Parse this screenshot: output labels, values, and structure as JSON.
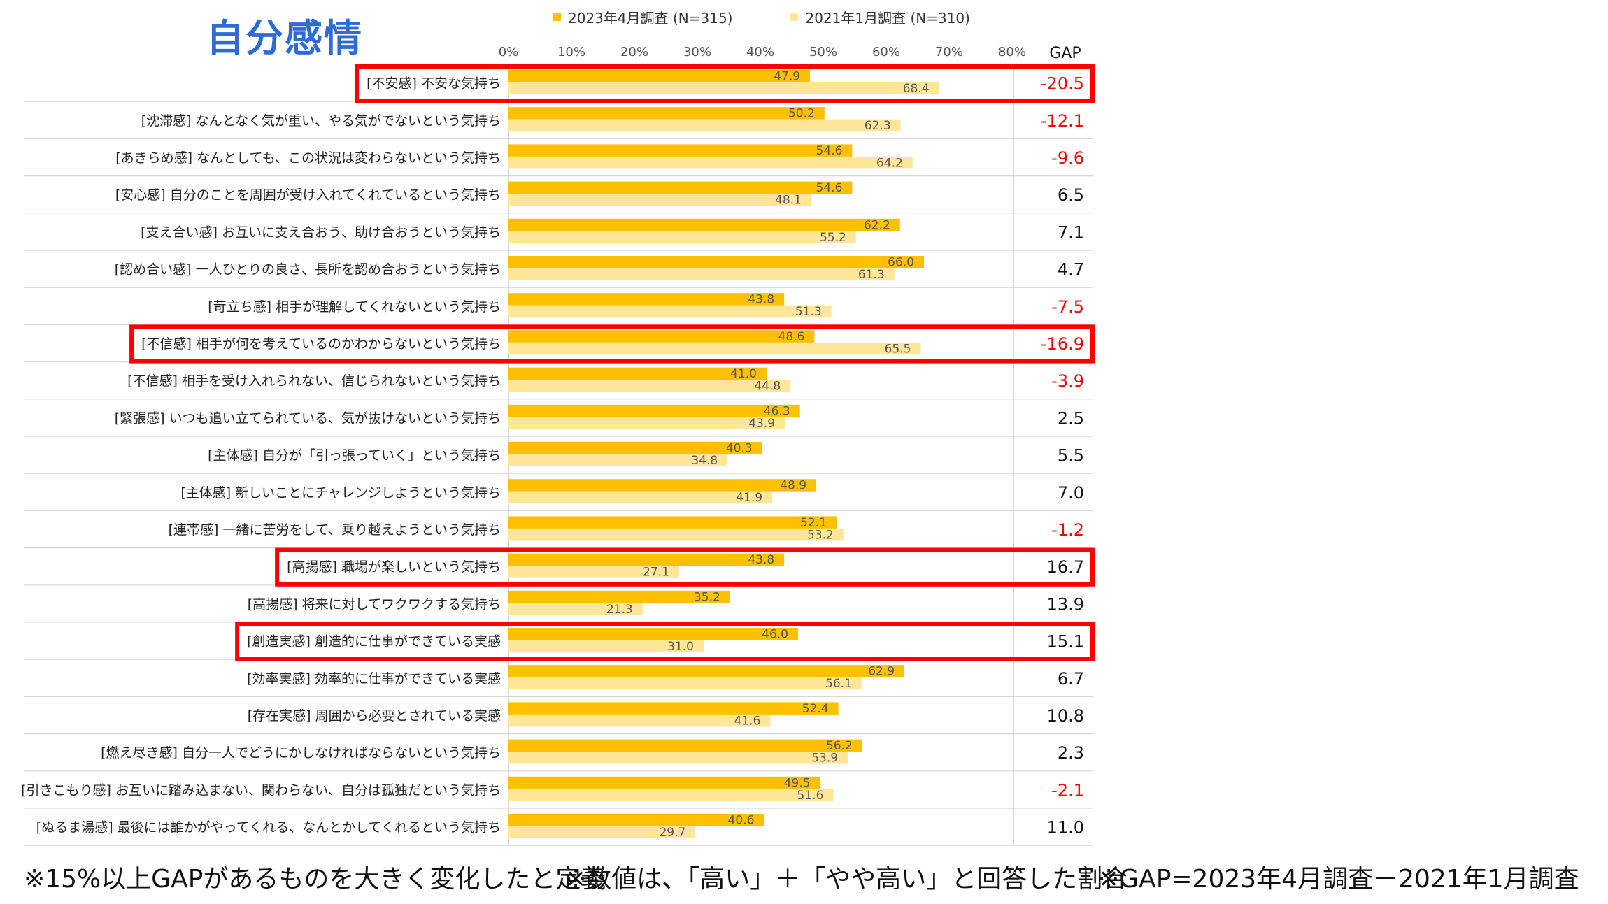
{
  "title": "自分感情",
  "chart_data": {
    "type": "bar",
    "orientation": "horizontal",
    "title": "自分感情",
    "xlim": [
      0,
      80
    ],
    "x_ticks": [
      "0%",
      "10%",
      "20%",
      "30%",
      "40%",
      "50%",
      "60%",
      "70%",
      "80%"
    ],
    "gap_header": "GAP",
    "series": [
      {
        "name": "2023年4月調査 (N=315)",
        "color": "#ffc000"
      },
      {
        "name": "2021年1月調査 (N=310)",
        "color": "#ffe699"
      }
    ],
    "gap_colors": {
      "negative": "#ff0000",
      "positive": "#111111"
    },
    "highlight_color": "#ff0000",
    "rows": [
      {
        "label": "[不安感] 不安な気持ち",
        "v2023": 47.9,
        "v2021": 68.4,
        "gap": "-20.5",
        "highlight": true
      },
      {
        "label": "[沈滞感] なんとなく気が重い、やる気がでないという気持ち",
        "v2023": 50.2,
        "v2021": 62.3,
        "gap": "-12.1",
        "highlight": false
      },
      {
        "label": "[あきらめ感] なんとしても、この状況は変わらないという気持ち",
        "v2023": 54.6,
        "v2021": 64.2,
        "gap": "-9.6",
        "highlight": false
      },
      {
        "label": "[安心感] 自分のことを周囲が受け入れてくれているという気持ち",
        "v2023": 54.6,
        "v2021": 48.1,
        "gap": "6.5",
        "highlight": false
      },
      {
        "label": "[支え合い感] お互いに支え合おう、助け合おうという気持ち",
        "v2023": 62.2,
        "v2021": 55.2,
        "gap": "7.1",
        "highlight": false
      },
      {
        "label": "[認め合い感] 一人ひとりの良さ、長所を認め合おうという気持ち",
        "v2023": 66.0,
        "v2021": 61.3,
        "gap": "4.7",
        "highlight": false
      },
      {
        "label": "[苛立ち感] 相手が理解してくれないという気持ち",
        "v2023": 43.8,
        "v2021": 51.3,
        "gap": "-7.5",
        "highlight": false
      },
      {
        "label": "[不信感] 相手が何を考えているのかわからないという気持ち",
        "v2023": 48.6,
        "v2021": 65.5,
        "gap": "-16.9",
        "highlight": true
      },
      {
        "label": "[不信感] 相手を受け入れられない、信じられないという気持ち",
        "v2023": 41.0,
        "v2021": 44.8,
        "gap": "-3.9",
        "highlight": false
      },
      {
        "label": "[緊張感] いつも追い立てられている、気が抜けないという気持ち",
        "v2023": 46.3,
        "v2021": 43.9,
        "gap": "2.5",
        "highlight": false
      },
      {
        "label": "[主体感] 自分が「引っ張っていく」という気持ち",
        "v2023": 40.3,
        "v2021": 34.8,
        "gap": "5.5",
        "highlight": false
      },
      {
        "label": "[主体感] 新しいことにチャレンジしようという気持ち",
        "v2023": 48.9,
        "v2021": 41.9,
        "gap": "7.0",
        "highlight": false
      },
      {
        "label": "[連帯感] 一緒に苦労をして、乗り越えようという気持ち",
        "v2023": 52.1,
        "v2021": 53.2,
        "gap": "-1.2",
        "highlight": false
      },
      {
        "label": "[高揚感] 職場が楽しいという気持ち",
        "v2023": 43.8,
        "v2021": 27.1,
        "gap": "16.7",
        "highlight": true
      },
      {
        "label": "[高揚感] 将来に対してワクワクする気持ち",
        "v2023": 35.2,
        "v2021": 21.3,
        "gap": "13.9",
        "highlight": false
      },
      {
        "label": "[創造実感] 創造的に仕事ができている実感",
        "v2023": 46.0,
        "v2021": 31.0,
        "gap": "15.1",
        "highlight": true
      },
      {
        "label": "[効率実感] 効率的に仕事ができている実感",
        "v2023": 62.9,
        "v2021": 56.1,
        "gap": "6.7",
        "highlight": false
      },
      {
        "label": "[存在実感] 周囲から必要とされている実感",
        "v2023": 52.4,
        "v2021": 41.6,
        "gap": "10.8",
        "highlight": false
      },
      {
        "label": "[燃え尽き感] 自分一人でどうにかしなければならないという気持ち",
        "v2023": 56.2,
        "v2021": 53.9,
        "gap": "2.3",
        "highlight": false
      },
      {
        "label": "[引きこもり感] お互いに踏み込まない、関わらない、自分は孤独だという気持ち",
        "v2023": 49.5,
        "v2021": 51.6,
        "gap": "-2.1",
        "highlight": false
      },
      {
        "label": "[ぬるま湯感] 最後には誰かがやってくれる、なんとかしてくれるという気持ち",
        "v2023": 40.6,
        "v2021": 29.7,
        "gap": "11.0",
        "highlight": false
      }
    ]
  },
  "footnotes": {
    "definition": "※15%以上GAPがあるものを大きく変化したと定義",
    "values": "※数値は、「高い」＋「やや高い」と回答した割合",
    "gap_formula": "※GAP=2023年4月調査－2021年1月調査"
  }
}
